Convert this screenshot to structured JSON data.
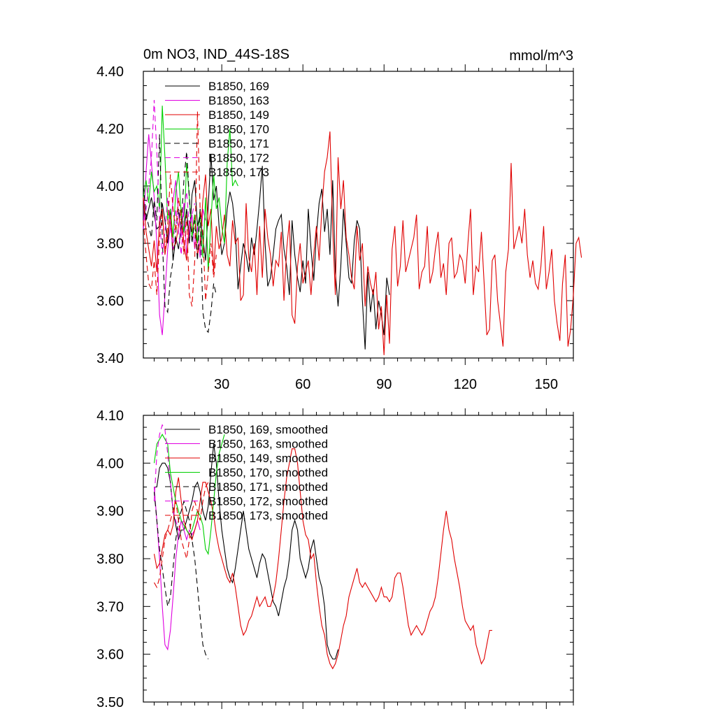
{
  "chart_data": [
    {
      "type": "line",
      "title": "0m NO3, IND_44S-18S",
      "units": "mmol/m^3",
      "xlim": [
        1,
        160
      ],
      "ylim": [
        3.4,
        4.4
      ],
      "x_ticks": [
        30,
        60,
        90,
        120,
        150
      ],
      "x_tick_labels": [
        "30",
        "60",
        "90",
        "120",
        "150"
      ],
      "y_ticks": [
        3.4,
        3.6,
        3.8,
        4.0,
        4.2,
        4.4
      ],
      "y_tick_labels": [
        "3.40",
        "3.60",
        "3.80",
        "4.00",
        "4.20",
        "4.40"
      ],
      "series": [
        {
          "name": "B1850, 169",
          "color": "#000000",
          "dash": "solid",
          "start": 1,
          "values": [
            3.95,
            3.88,
            3.92,
            3.96,
            3.9,
            3.85,
            3.86,
            3.94,
            3.88,
            3.8,
            3.92,
            3.74,
            3.82,
            3.78,
            3.86,
            3.84,
            3.92,
            3.8,
            3.97,
            4.02,
            3.86,
            3.9,
            3.82,
            3.74,
            3.93,
            4.11,
            3.95,
            4.0,
            3.86,
            3.76,
            3.8,
            3.92,
            3.98,
            3.94,
            3.85,
            3.64,
            3.72,
            3.8,
            3.76,
            3.7,
            3.82,
            3.76,
            3.85,
            3.95,
            4.07,
            3.8,
            3.65,
            3.68,
            3.76,
            3.85,
            3.88,
            3.9,
            3.78,
            3.72,
            3.62,
            3.88,
            3.76,
            3.68,
            3.63,
            3.74,
            3.66,
            3.92,
            3.78,
            3.67,
            3.83,
            3.94,
            3.99,
            3.84,
            3.92,
            3.76,
            4.02,
            3.7,
            3.58,
            3.72,
            3.92,
            3.8,
            3.68,
            3.66,
            3.81,
            3.88,
            3.85,
            3.6,
            3.43,
            3.7,
            3.56,
            3.64,
            3.5,
            3.6,
            3.55,
            3.48,
            3.68,
            3.62
          ]
        },
        {
          "name": "B1850, 163",
          "color": "#e000e0",
          "dash": "solid",
          "start": 1,
          "values": [
            3.85,
            4.05,
            4.18,
            4.08,
            3.96,
            3.8,
            3.55,
            3.48,
            3.62,
            3.78,
            3.86,
            3.95,
            4.02,
            3.9,
            3.82,
            3.94,
            3.76,
            3.84,
            3.9,
            3.78,
            3.86,
            3.75,
            3.92,
            3.88
          ]
        },
        {
          "name": "B1850, 149",
          "color": "#e00000",
          "dash": "solid",
          "start": 1,
          "values": [
            3.96,
            3.84,
            3.78,
            3.72,
            3.81,
            3.7,
            3.88,
            3.92,
            3.76,
            3.83,
            3.9,
            3.78,
            3.8,
            3.86,
            3.92,
            3.8,
            3.74,
            3.88,
            3.84,
            3.9,
            3.76,
            3.8,
            3.95,
            4.04,
            3.86,
            3.92,
            3.7,
            3.86,
            3.78,
            3.82,
            3.9,
            3.76,
            3.72,
            3.88,
            3.8,
            3.82,
            3.6,
            3.62,
            3.94,
            3.75,
            3.7,
            3.8,
            3.62,
            3.86,
            3.68,
            3.92,
            3.82,
            3.76,
            3.65,
            3.74,
            3.72,
            3.84,
            3.6,
            3.78,
            3.88,
            3.55,
            3.52,
            3.72,
            3.8,
            3.66,
            3.7,
            3.74,
            3.62,
            3.76,
            3.86,
            3.74,
            3.92,
            4.05,
            4.1,
            4.19,
            3.85,
            3.62,
            4.1,
            3.92,
            4.02,
            3.82,
            3.76,
            3.68,
            3.64,
            3.86,
            3.74,
            3.8,
            3.58,
            3.72,
            3.66,
            3.62,
            3.7,
            3.5,
            3.58,
            3.41,
            3.62,
            3.45,
            3.78,
            3.86,
            3.65,
            3.72,
            3.88,
            3.7,
            3.74,
            3.78,
            3.82,
            3.9,
            3.64,
            3.7,
            3.72,
            3.86,
            3.66,
            3.7,
            3.78,
            3.84,
            3.68,
            3.73,
            3.62,
            3.8,
            3.82,
            3.68,
            3.7,
            3.76,
            3.74,
            3.66,
            3.8,
            3.92,
            3.62,
            3.72,
            3.7,
            3.84,
            3.66,
            3.48,
            3.5,
            3.74,
            3.76,
            3.6,
            3.52,
            3.44,
            3.7,
            3.78,
            4.08,
            3.78,
            3.82,
            3.86,
            3.8,
            3.92,
            3.76,
            3.68,
            3.74,
            3.66,
            3.64,
            3.72,
            3.86,
            3.64,
            3.7,
            3.78,
            3.6,
            3.52,
            3.46,
            3.66,
            3.76,
            3.44,
            3.5,
            3.62,
            3.8,
            3.82,
            3.75
          ]
        },
        {
          "name": "B1850, 170",
          "color": "#00d000",
          "dash": "solid",
          "start": 1,
          "values": [
            3.96,
            4.02,
            3.94,
            4.05,
            3.98,
            4.0,
            3.92,
            4.28,
            4.1,
            3.88,
            3.92,
            3.82,
            3.98,
            4.05,
            3.9,
            3.84,
            4.08,
            3.96,
            3.82,
            3.9,
            3.8,
            3.92,
            3.75,
            3.96,
            3.7,
            3.88,
            4.04,
            3.92,
            3.96,
            3.86,
            3.8,
            4.08,
            4.2,
            4.0,
            4.02,
            4.0
          ]
        },
        {
          "name": "B1850, 171",
          "color": "#000000",
          "dash": "dash",
          "start": 1,
          "values": [
            4.0,
            3.9,
            3.86,
            3.82,
            3.95,
            3.88,
            4.18,
            3.82,
            3.58,
            3.56,
            3.68,
            3.74,
            3.84,
            3.92,
            3.86,
            4.02,
            4.12,
            3.96,
            3.8,
            3.88,
            3.74,
            3.92,
            3.56,
            3.5,
            3.49,
            3.56,
            3.66,
            3.62
          ]
        },
        {
          "name": "B1850, 172",
          "color": "#e000e0",
          "dash": "dash",
          "start": 1,
          "values": [
            3.85,
            3.92,
            4.0,
            4.1,
            4.3,
            4.12,
            3.88,
            3.76,
            3.84,
            3.96,
            3.86,
            3.78,
            3.92,
            3.84,
            3.76,
            3.92,
            3.98,
            3.86,
            3.9,
            3.94
          ]
        },
        {
          "name": "B1850, 173",
          "color": "#e00000",
          "dash": "dash",
          "start": 1,
          "values": [
            3.88,
            3.76,
            3.66,
            3.64,
            3.74,
            3.62,
            3.82,
            3.9,
            3.78,
            3.86,
            4.04,
            3.92,
            3.84,
            3.96,
            3.88,
            3.76,
            3.9,
            3.62,
            3.58,
            3.74,
            4.26,
            3.92,
            3.84,
            3.6,
            3.7,
            3.8,
            3.68,
            3.76
          ]
        }
      ]
    },
    {
      "type": "line",
      "xlim": [
        1,
        160
      ],
      "ylim": [
        3.5,
        4.1
      ],
      "x_ticks": [
        30,
        60,
        90,
        120,
        150
      ],
      "y_ticks": [
        3.5,
        3.6,
        3.7,
        3.8,
        3.9,
        4.0,
        4.1
      ],
      "y_tick_labels": [
        "3.50",
        "3.60",
        "3.70",
        "3.80",
        "3.90",
        "4.00",
        "4.10"
      ],
      "series": [
        {
          "name": "B1850, 169, smoothed",
          "color": "#000000",
          "dash": "solid",
          "start": 5,
          "values": [
            3.95,
            3.95,
            3.99,
            4.0,
            4.0,
            3.99,
            3.96,
            3.9,
            3.87,
            3.84,
            3.86,
            3.86,
            3.88,
            3.9,
            3.92,
            3.95,
            3.96,
            3.94,
            3.9,
            3.88,
            3.91,
            3.98,
            4.04,
            4.0,
            3.92,
            3.86,
            3.82,
            3.78,
            3.76,
            3.75,
            3.78,
            3.82,
            3.86,
            3.9,
            3.86,
            3.82,
            3.8,
            3.78,
            3.76,
            3.79,
            3.81,
            3.8,
            3.77,
            3.74,
            3.71,
            3.7,
            3.68,
            3.71,
            3.74,
            3.76,
            3.8,
            3.86,
            3.88,
            3.86,
            3.8,
            3.78,
            3.76,
            3.78,
            3.82,
            3.84,
            3.8,
            3.76,
            3.74,
            3.7,
            3.62,
            3.6,
            3.59,
            3.59,
            3.61
          ]
        },
        {
          "name": "B1850, 163, smoothed",
          "color": "#e000e0",
          "dash": "solid",
          "start": 5,
          "values": [
            3.95,
            3.88,
            3.8,
            3.7,
            3.62,
            3.61,
            3.65,
            3.72,
            3.8,
            3.85,
            3.88,
            3.86,
            3.84,
            3.86,
            3.85,
            3.86,
            3.88,
            3.86
          ]
        },
        {
          "name": "B1850, 149, smoothed",
          "color": "#e00000",
          "dash": "solid",
          "start": 5,
          "values": [
            3.81,
            3.78,
            3.79,
            3.82,
            3.85,
            3.86,
            3.85,
            3.87,
            3.94,
            3.97,
            3.92,
            3.88,
            3.86,
            3.85,
            3.84,
            3.86,
            3.88,
            3.92,
            3.96,
            3.96,
            3.94,
            3.92,
            3.89,
            3.85,
            3.82,
            3.8,
            3.78,
            3.76,
            3.75,
            3.77,
            3.74,
            3.7,
            3.66,
            3.64,
            3.65,
            3.67,
            3.68,
            3.7,
            3.72,
            3.7,
            3.71,
            3.72,
            3.7,
            3.7,
            3.72,
            3.75,
            3.8,
            3.86,
            3.92,
            3.97,
            4.0,
            4.03,
            4.03,
            4.0,
            3.94,
            3.88,
            3.85,
            3.84,
            3.8,
            3.81,
            3.75,
            3.7,
            3.66,
            3.64,
            3.6,
            3.58,
            3.57,
            3.58,
            3.6,
            3.63,
            3.66,
            3.68,
            3.72,
            3.74,
            3.76,
            3.78,
            3.75,
            3.74,
            3.75,
            3.74,
            3.73,
            3.72,
            3.71,
            3.72,
            3.74,
            3.72,
            3.72,
            3.71,
            3.72,
            3.76,
            3.77,
            3.77,
            3.74,
            3.7,
            3.66,
            3.64,
            3.65,
            3.66,
            3.65,
            3.64,
            3.65,
            3.67,
            3.69,
            3.7,
            3.72,
            3.76,
            3.81,
            3.86,
            3.9,
            3.86,
            3.84,
            3.8,
            3.77,
            3.74,
            3.7,
            3.67,
            3.66,
            3.65,
            3.66,
            3.62,
            3.6,
            3.58,
            3.59,
            3.62,
            3.65,
            3.65
          ]
        },
        {
          "name": "B1850, 170, smoothed",
          "color": "#00d000",
          "dash": "solid",
          "start": 5,
          "values": [
            4.0,
            4.04,
            4.05,
            4.06,
            4.05,
            4.04,
            3.98,
            3.95,
            3.92,
            3.9,
            3.88,
            3.87,
            3.86,
            3.85,
            3.86,
            3.88,
            3.9,
            3.89,
            3.87,
            3.82,
            3.81,
            3.86,
            3.92,
            3.98,
            4.02,
            4.04,
            4.06
          ]
        },
        {
          "name": "B1850, 171, smoothed",
          "color": "#000000",
          "dash": "dash",
          "start": 5,
          "values": [
            3.94,
            3.88,
            3.82,
            3.78,
            3.74,
            3.7,
            3.72,
            3.78,
            3.84,
            3.88,
            3.9,
            3.92,
            3.9,
            3.88,
            3.84,
            3.8,
            3.74,
            3.68,
            3.62,
            3.6,
            3.59
          ]
        },
        {
          "name": "B1850, 172, smoothed",
          "color": "#e000e0",
          "dash": "dash",
          "start": 5,
          "values": [
            3.92,
            4.02,
            4.06,
            4.08,
            4.07,
            4.02,
            3.96,
            3.9,
            3.88,
            3.86,
            3.87,
            3.88
          ]
        },
        {
          "name": "B1850, 173, smoothed",
          "color": "#e00000",
          "dash": "dash",
          "start": 5,
          "values": [
            3.75,
            3.74,
            3.76,
            3.8,
            3.84,
            3.86,
            3.88,
            3.9,
            3.92,
            3.88,
            3.84,
            3.82,
            3.8,
            3.84,
            3.9,
            3.92,
            3.9,
            3.88,
            3.92,
            3.95,
            3.96
          ]
        }
      ]
    }
  ]
}
